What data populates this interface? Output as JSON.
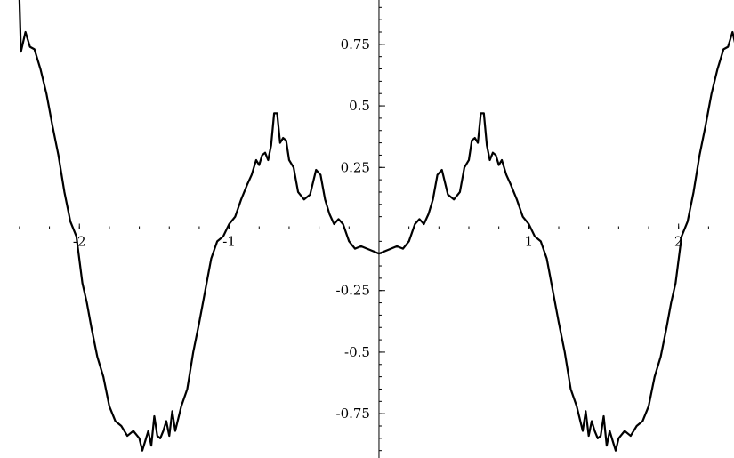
{
  "chart_data": {
    "type": "line",
    "title": "",
    "xlabel": "",
    "ylabel": "",
    "xlim": [
      -2.53,
      2.37
    ],
    "ylim": [
      -0.93,
      0.93
    ],
    "grid": false,
    "x_ticks": [
      {
        "value": -2,
        "label": "-2"
      },
      {
        "value": -1,
        "label": "-1"
      },
      {
        "value": 1,
        "label": "1"
      },
      {
        "value": 2,
        "label": "2"
      }
    ],
    "x_minor_step": 0.2,
    "y_ticks": [
      {
        "value": 0.75,
        "label": "0.75"
      },
      {
        "value": 0.5,
        "label": "0.5"
      },
      {
        "value": 0.25,
        "label": "0.25"
      },
      {
        "value": -0.25,
        "label": "-0.25"
      },
      {
        "value": -0.5,
        "label": "-0.5"
      },
      {
        "value": -0.75,
        "label": "-0.75"
      }
    ],
    "y_minor_step": 0.05,
    "series": [
      {
        "x": [
          -2.4,
          -2.39,
          -2.36,
          -2.33,
          -2.3,
          -2.26,
          -2.22,
          -2.18,
          -2.14,
          -2.1,
          -2.06,
          -2.02,
          -1.98,
          -1.95,
          -1.92,
          -1.88,
          -1.84,
          -1.8,
          -1.76,
          -1.72,
          -1.68,
          -1.64,
          -1.6,
          -1.58,
          -1.56,
          -1.54,
          -1.52,
          -1.5,
          -1.48,
          -1.46,
          -1.44,
          -1.42,
          -1.4,
          -1.38,
          -1.36,
          -1.32,
          -1.28,
          -1.24,
          -1.2,
          -1.16,
          -1.12,
          -1.08,
          -1.04,
          -1.0,
          -0.96,
          -0.92,
          -0.88,
          -0.85,
          -0.82,
          -0.8,
          -0.78,
          -0.76,
          -0.74,
          -0.72,
          -0.7,
          -0.68,
          -0.66,
          -0.64,
          -0.62,
          -0.6,
          -0.57,
          -0.54,
          -0.5,
          -0.46,
          -0.42,
          -0.39,
          -0.36,
          -0.33,
          -0.3,
          -0.27,
          -0.24,
          -0.2,
          -0.16,
          -0.12,
          -0.08,
          -0.04,
          0.0,
          0.04,
          0.08,
          0.12,
          0.16,
          0.2,
          0.24,
          0.27,
          0.3,
          0.33,
          0.36,
          0.39,
          0.42,
          0.46,
          0.5,
          0.54,
          0.57,
          0.6,
          0.62,
          0.64,
          0.66,
          0.68,
          0.7,
          0.72,
          0.74,
          0.76,
          0.78,
          0.8,
          0.82,
          0.85,
          0.88,
          0.92,
          0.96,
          1.0,
          1.04,
          1.08,
          1.12,
          1.16,
          1.2,
          1.24,
          1.28,
          1.32,
          1.36,
          1.38,
          1.4,
          1.42,
          1.44,
          1.46,
          1.48,
          1.5,
          1.52,
          1.54,
          1.56,
          1.58,
          1.6,
          1.64,
          1.68,
          1.72,
          1.76,
          1.8,
          1.84,
          1.88,
          1.92,
          1.95,
          1.98,
          2.02,
          2.06,
          2.1,
          2.14,
          2.18,
          2.22,
          2.26,
          2.3,
          2.33,
          2.36,
          2.39,
          2.4
        ],
        "y": [
          0.93,
          0.72,
          0.8,
          0.74,
          0.73,
          0.65,
          0.55,
          0.42,
          0.3,
          0.15,
          0.03,
          -0.03,
          -0.22,
          -0.3,
          -0.4,
          -0.52,
          -0.6,
          -0.72,
          -0.78,
          -0.8,
          -0.84,
          -0.82,
          -0.85,
          -0.9,
          -0.86,
          -0.82,
          -0.88,
          -0.76,
          -0.84,
          -0.85,
          -0.82,
          -0.78,
          -0.84,
          -0.74,
          -0.82,
          -0.72,
          -0.65,
          -0.5,
          -0.38,
          -0.25,
          -0.12,
          -0.05,
          -0.03,
          0.02,
          0.05,
          0.12,
          0.18,
          0.22,
          0.28,
          0.26,
          0.3,
          0.31,
          0.28,
          0.34,
          0.47,
          0.47,
          0.35,
          0.37,
          0.36,
          0.28,
          0.25,
          0.15,
          0.12,
          0.14,
          0.24,
          0.22,
          0.12,
          0.06,
          0.02,
          0.04,
          0.02,
          -0.05,
          -0.08,
          -0.07,
          -0.08,
          -0.09,
          -0.1,
          -0.09,
          -0.08,
          -0.07,
          -0.08,
          -0.05,
          0.02,
          0.04,
          0.02,
          0.06,
          0.12,
          0.22,
          0.24,
          0.14,
          0.12,
          0.15,
          0.25,
          0.28,
          0.36,
          0.37,
          0.35,
          0.47,
          0.47,
          0.34,
          0.28,
          0.31,
          0.3,
          0.26,
          0.28,
          0.22,
          0.18,
          0.12,
          0.05,
          0.02,
          -0.03,
          -0.05,
          -0.12,
          -0.25,
          -0.38,
          -0.5,
          -0.65,
          -0.72,
          -0.82,
          -0.74,
          -0.84,
          -0.78,
          -0.82,
          -0.85,
          -0.84,
          -0.76,
          -0.88,
          -0.82,
          -0.86,
          -0.9,
          -0.85,
          -0.82,
          -0.84,
          -0.8,
          -0.78,
          -0.72,
          -0.6,
          -0.52,
          -0.4,
          -0.3,
          -0.22,
          -0.03,
          0.03,
          0.15,
          0.3,
          0.42,
          0.55,
          0.65,
          0.73,
          0.74,
          0.8,
          0.72,
          0.93
        ]
      }
    ]
  }
}
